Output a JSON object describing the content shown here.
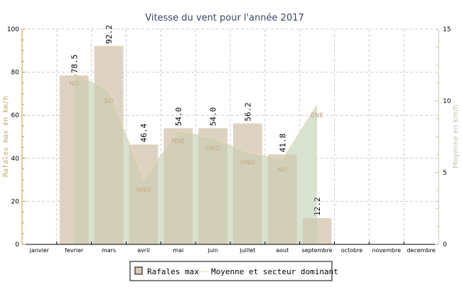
{
  "chart_data": {
    "type": "bar",
    "title": "Vitesse du vent pour l'année 2017",
    "categories": [
      "janvier",
      "fevrier",
      "mars",
      "avril",
      "mai",
      "juin",
      "juillet",
      "aout",
      "septembre",
      "octobre",
      "novembre",
      "decembre"
    ],
    "ylabel": "Rafales max en km/h",
    "y2label": "Moyenne en km/h",
    "ylim": [
      0,
      100
    ],
    "y2lim": [
      0,
      15
    ],
    "yticks": [
      0,
      20,
      40,
      60,
      80,
      100
    ],
    "y2ticks": [
      0,
      5,
      10,
      15
    ],
    "grid": true,
    "legend_position": "bottom",
    "series": [
      {
        "name": "Rafales max",
        "type": "bar",
        "axis": "left",
        "color": "#d8cbb8",
        "values": [
          null,
          78.5,
          92.2,
          46.4,
          54.0,
          54.0,
          56.2,
          41.8,
          12.2,
          null,
          null,
          null
        ],
        "labels": [
          "",
          "78.5",
          "92.2",
          "46.4",
          "54.0",
          "54.0",
          "56.2",
          "41.8",
          "12.2",
          "",
          "",
          ""
        ]
      },
      {
        "name": "Moyenne et secteur dominant",
        "type": "area-line",
        "axis": "right",
        "color": "#e6d6b0",
        "fill": "#e3eee0",
        "values": [
          null,
          11.9,
          10.7,
          4.5,
          7.9,
          7.4,
          6.4,
          5.9,
          9.7,
          null,
          null,
          null
        ],
        "sectors": [
          "",
          "NO",
          "SO",
          "NNO",
          "NNE",
          "ONO",
          "ONO",
          "NO",
          "ENE",
          "",
          "",
          ""
        ]
      }
    ]
  }
}
